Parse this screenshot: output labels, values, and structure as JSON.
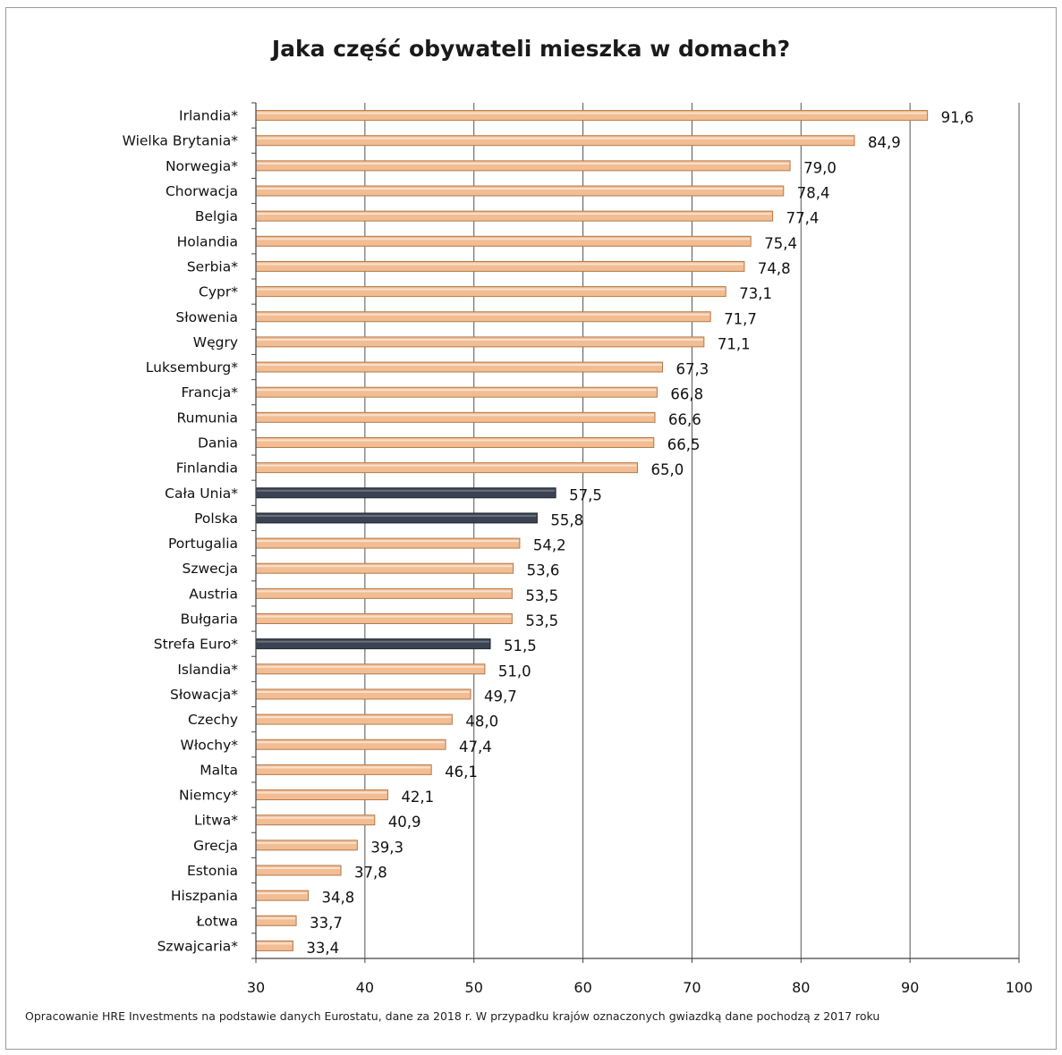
{
  "chart_data": {
    "type": "bar",
    "orientation": "horizontal",
    "title": "Jaka część obywateli mieszka w domach?",
    "xlim": [
      30,
      100
    ],
    "xticks": [
      30,
      40,
      50,
      60,
      70,
      80,
      90,
      100
    ],
    "grid": true,
    "categories": [
      "Irlandia*",
      "Wielka Brytania*",
      "Norwegia*",
      "Chorwacja",
      "Belgia",
      "Holandia",
      "Serbia*",
      "Cypr*",
      "Słowenia",
      "Węgry",
      "Luksemburg*",
      "Francja*",
      "Rumunia",
      "Dania",
      "Finlandia",
      "Cała Unia*",
      "Polska",
      "Portugalia",
      "Szwecja",
      "Austria",
      "Bułgaria",
      "Strefa Euro*",
      "Islandia*",
      "Słowacja*",
      "Czechy",
      "Włochy*",
      "Malta",
      "Niemcy*",
      "Litwa*",
      "Grecja",
      "Estonia",
      "Hiszpania",
      "Łotwa",
      "Szwajcaria*"
    ],
    "values": [
      91.6,
      84.9,
      79.0,
      78.4,
      77.4,
      75.4,
      74.8,
      73.1,
      71.7,
      71.1,
      67.3,
      66.8,
      66.6,
      66.5,
      65.0,
      57.5,
      55.8,
      54.2,
      53.6,
      53.5,
      53.5,
      51.5,
      51.0,
      49.7,
      48.0,
      47.4,
      46.1,
      42.1,
      40.9,
      39.3,
      37.8,
      34.8,
      33.7,
      33.4
    ],
    "value_labels": [
      "91,6",
      "84,9",
      "79,0",
      "78,4",
      "77,4",
      "75,4",
      "74,8",
      "73,1",
      "71,7",
      "71,1",
      "67,3",
      "66,8",
      "66,6",
      "66,5",
      "65,0",
      "57,5",
      "55,8",
      "54,2",
      "53,6",
      "53,5",
      "53,5",
      "51,5",
      "51,0",
      "49,7",
      "48,0",
      "47,4",
      "46,1",
      "42,1",
      "40,9",
      "39,3",
      "37,8",
      "34,8",
      "33,7",
      "33,4"
    ],
    "highlighted": [
      "Cała Unia*",
      "Polska",
      "Strefa Euro*"
    ],
    "colors": {
      "bar": "#f2bd93",
      "bar_edge": "#b57a4a",
      "highlight": "#3b4352",
      "highlight_edge": "#1f2530",
      "grid": "#555555"
    }
  },
  "footnote": "Opracowanie HRE Investments na podstawie danych Eurostatu, dane za 2018 r. W przypadku krajów oznaczonych gwiazdką dane pochodzą z 2017 roku"
}
